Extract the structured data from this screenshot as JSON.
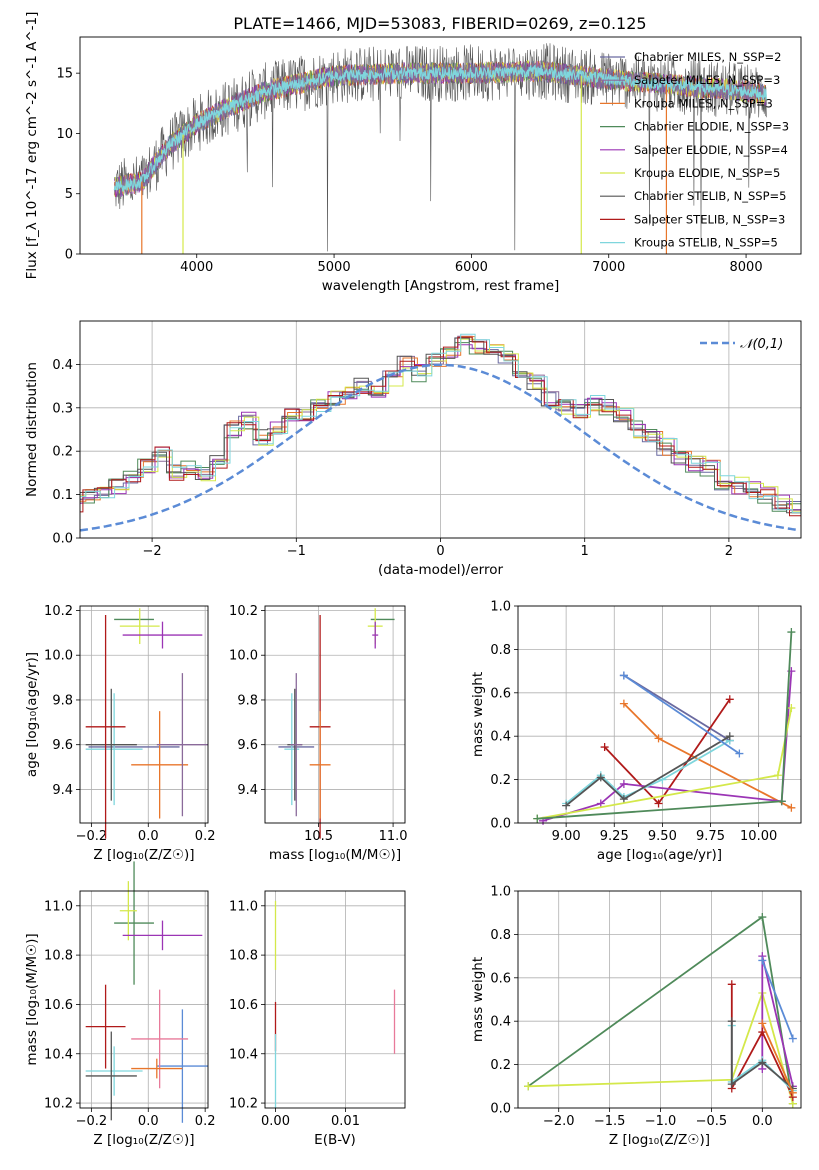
{
  "figure_title": "PLATE=1466, MJD=53083, FIBERID=0269, z=0.125",
  "colors": {
    "Chabrier MILES": "#6a6aa0",
    "Salpeter MILES": "#8a6a9a",
    "Kroupa MILES": "#e8762b",
    "Chabrier ELODIE": "#4f8a5a",
    "Salpeter ELODIE": "#9b35b5",
    "Kroupa ELODIE": "#d4e84a",
    "Chabrier STELIB": "#555555",
    "Salpeter STELIB": "#b01a1a",
    "Kroupa STELIB": "#7fd6dd",
    "gaussian": "#5b8bd6",
    "blue_model": "#5b8bd6",
    "pink_model": "#e87a9a"
  },
  "chart_data": [
    {
      "type": "line",
      "id": "spectrum",
      "title": "PLATE=1466, MJD=53083, FIBERID=0269, z=0.125",
      "xlabel": "wavelength [Angstrom, rest frame]",
      "ylabel": "Flux [f_λ 10^-17 erg cm^-2 s^-1 A^-1]",
      "xlim": [
        3150,
        8400
      ],
      "ylim": [
        0,
        18
      ],
      "xticks": [
        4000,
        5000,
        6000,
        7000,
        8000
      ],
      "yticks": [
        0,
        5,
        10,
        15
      ],
      "grid": false,
      "legend_loc": "right",
      "legend": [
        "Chabrier MILES, N_SSP=2",
        "Salpeter MILES, N_SSP=3",
        "Kroupa MILES, N_SSP=3",
        "Chabrier ELODIE, N_SSP=3",
        "Salpeter ELODIE, N_SSP=4",
        "Kroupa ELODIE, N_SSP=5",
        "Chabrier STELIB, N_SSP=5",
        "Salpeter STELIB, N_SSP=3",
        "Kroupa STELIB, N_SSP=5"
      ],
      "continuum": {
        "x": [
          3400,
          3600,
          3800,
          4000,
          4200,
          4500,
          5000,
          5500,
          6000,
          6500,
          7000,
          7500,
          8000,
          8150
        ],
        "y": [
          5.5,
          6.0,
          9.0,
          10.8,
          12.0,
          13.5,
          14.8,
          15.0,
          15.0,
          15.2,
          14.5,
          14.0,
          13.5,
          13.2
        ]
      }
    },
    {
      "type": "step",
      "id": "residuals",
      "xlabel": "(data-model)/error",
      "ylabel": "Normed distribution",
      "xlim": [
        -2.5,
        2.5
      ],
      "ylim": [
        0,
        0.5
      ],
      "xticks": [
        -2,
        -1,
        0,
        1,
        2
      ],
      "yticks": [
        0.0,
        0.1,
        0.2,
        0.3,
        0.4
      ],
      "grid": true,
      "legend": [
        "𝒩(0,1)"
      ],
      "legend_loc": "upper right",
      "bin_width": 0.1,
      "hist_values": [
        0.02,
        0.025,
        0.03,
        0.04,
        0.045,
        0.05,
        0.06,
        0.08,
        0.09,
        0.08,
        0.1,
        0.11,
        0.12,
        0.14,
        0.17,
        0.19,
        0.15,
        0.16,
        0.15,
        0.17,
        0.25,
        0.27,
        0.23,
        0.25,
        0.28,
        0.29,
        0.3,
        0.32,
        0.34,
        0.35,
        0.33,
        0.37,
        0.4,
        0.38,
        0.41,
        0.43,
        0.45,
        0.44,
        0.43,
        0.42,
        0.38,
        0.36,
        0.32,
        0.3,
        0.29,
        0.31,
        0.3,
        0.28,
        0.25,
        0.24,
        0.21,
        0.18,
        0.17,
        0.16,
        0.13,
        0.12,
        0.11,
        0.1,
        0.08,
        0.07,
        0.06,
        0.05,
        0.04,
        0.035,
        0.03,
        0.03,
        0.02,
        0.03,
        0.02,
        0.02
      ]
    },
    {
      "type": "errorbar",
      "id": "age_vs_Z",
      "xlabel": "Z [log₁₀(Z/Z☉)]",
      "ylabel": "age  [log₁₀(age/yr)]",
      "xlim": [
        -0.24,
        0.21
      ],
      "ylim": [
        9.25,
        10.22
      ],
      "xticks": [
        -0.2,
        0.0,
        0.2
      ],
      "yticks": [
        9.4,
        9.6,
        9.8,
        10.0,
        10.2
      ],
      "grid": true,
      "points": [
        {
          "model": "Chabrier MILES",
          "x": -0.05,
          "y": 9.59,
          "xerr": 0.16,
          "yerr": 0.0
        },
        {
          "model": "Kroupa STELIB",
          "x": -0.12,
          "y": 9.58,
          "xerr": 0.1,
          "yerr": 0.25
        },
        {
          "model": "Chabrier STELIB",
          "x": -0.13,
          "y": 9.6,
          "xerr": 0.09,
          "yerr": 0.25
        },
        {
          "model": "Salpeter STELIB",
          "x": -0.15,
          "y": 9.68,
          "xerr": 0.07,
          "yerr": 0.5
        },
        {
          "model": "Kroupa MILES",
          "x": 0.04,
          "y": 9.51,
          "xerr": 0.1,
          "yerr": 0.24
        },
        {
          "model": "Salpeter MILES",
          "x": 0.12,
          "y": 9.6,
          "xerr": 0.09,
          "yerr": 0.32
        },
        {
          "model": "Chabrier ELODIE",
          "x": -0.05,
          "y": 10.16,
          "xerr": 0.07,
          "yerr": 0.0
        },
        {
          "model": "Kroupa ELODIE",
          "x": -0.03,
          "y": 10.13,
          "xerr": 0.07,
          "yerr": 0.08
        },
        {
          "model": "Salpeter ELODIE",
          "x": 0.05,
          "y": 10.09,
          "xerr": 0.14,
          "yerr": 0.06
        }
      ]
    },
    {
      "type": "errorbar",
      "id": "age_vs_mass",
      "xlabel": "mass [log₁₀(M/M☉)]",
      "ylabel": "",
      "xlim": [
        10.14,
        11.08
      ],
      "ylim": [
        9.25,
        10.22
      ],
      "xticks": [
        10.5,
        11.0
      ],
      "yticks": [
        9.4,
        9.6,
        9.8,
        10.0,
        10.2
      ],
      "grid": true,
      "points": [
        {
          "model": "Chabrier MILES",
          "x": 10.35,
          "y": 9.59,
          "xerr": 0.12,
          "yerr": 0.0
        },
        {
          "model": "Kroupa STELIB",
          "x": 10.32,
          "y": 9.58,
          "xerr": 0.05,
          "yerr": 0.25
        },
        {
          "model": "Chabrier STELIB",
          "x": 10.34,
          "y": 9.6,
          "xerr": 0.05,
          "yerr": 0.25
        },
        {
          "model": "Salpeter STELIB",
          "x": 10.51,
          "y": 9.68,
          "xerr": 0.07,
          "yerr": 0.5
        },
        {
          "model": "Kroupa MILES",
          "x": 10.51,
          "y": 9.51,
          "xerr": 0.07,
          "yerr": 0.24
        },
        {
          "model": "Salpeter MILES",
          "x": 10.35,
          "y": 9.6,
          "xerr": 0.04,
          "yerr": 0.32
        },
        {
          "model": "Chabrier ELODIE",
          "x": 10.93,
          "y": 10.16,
          "xerr": 0.08,
          "yerr": 0.0
        },
        {
          "model": "Kroupa ELODIE",
          "x": 10.88,
          "y": 10.13,
          "xerr": 0.05,
          "yerr": 0.08
        },
        {
          "model": "Salpeter ELODIE",
          "x": 10.88,
          "y": 10.09,
          "xerr": 0.02,
          "yerr": 0.06
        }
      ]
    },
    {
      "type": "line",
      "id": "massweight_vs_age",
      "xlabel": "age  [log₁₀(age/yr)]",
      "ylabel": "mass weight",
      "xlim": [
        8.75,
        10.22
      ],
      "ylim": [
        0,
        1.0
      ],
      "xticks": [
        9.0,
        9.25,
        9.5,
        9.75,
        10.0
      ],
      "yticks": [
        0.0,
        0.2,
        0.4,
        0.6,
        0.8,
        1.0
      ],
      "grid": true,
      "series": [
        {
          "model": "Chabrier MILES",
          "x": [
            9.3,
            9.85
          ],
          "y": [
            0.68,
            0.38
          ]
        },
        {
          "model": "Kroupa MILES",
          "x": [
            9.3,
            9.48,
            10.17
          ],
          "y": [
            0.55,
            0.39,
            0.07
          ]
        },
        {
          "model": "Salpeter STELIB",
          "x": [
            9.2,
            9.48,
            9.85
          ],
          "y": [
            0.35,
            0.09,
            0.57
          ]
        },
        {
          "model": "Salpeter ELODIE",
          "x": [
            8.88,
            9.18,
            9.3,
            10.12,
            10.17
          ],
          "y": [
            0.01,
            0.09,
            0.18,
            0.1,
            0.7
          ]
        },
        {
          "model": "Kroupa STELIB",
          "x": [
            9.0,
            9.18,
            9.3,
            9.5,
            9.85
          ],
          "y": [
            0.09,
            0.22,
            0.12,
            0.2,
            0.38
          ]
        },
        {
          "model": "Chabrier STELIB",
          "x": [
            9.0,
            9.18,
            9.3,
            9.85
          ],
          "y": [
            0.08,
            0.21,
            0.11,
            0.4
          ]
        },
        {
          "model": "Kroupa ELODIE",
          "x": [
            8.85,
            10.1,
            10.17
          ],
          "y": [
            0.02,
            0.22,
            0.53
          ]
        },
        {
          "model": "Chabrier ELODIE",
          "x": [
            8.85,
            10.12,
            10.17
          ],
          "y": [
            0.02,
            0.1,
            0.88
          ]
        },
        {
          "model": "blue_model",
          "x": [
            9.3,
            9.9
          ],
          "y": [
            0.68,
            0.32
          ]
        }
      ]
    },
    {
      "type": "errorbar",
      "id": "mass_vs_Z",
      "xlabel": "Z [log₁₀(Z/Z☉)]",
      "ylabel": "mass [log₁₀(M/M☉)]",
      "xlim": [
        -0.24,
        0.21
      ],
      "ylim": [
        10.18,
        11.06
      ],
      "xticks": [
        -0.2,
        0.0,
        0.2
      ],
      "yticks": [
        10.2,
        10.4,
        10.6,
        10.8,
        11.0
      ],
      "grid": true,
      "points": [
        {
          "model": "blue_model",
          "x": 0.12,
          "y": 10.35,
          "xerr": 0.09,
          "yerr": 0.23
        },
        {
          "model": "Kroupa STELIB",
          "x": -0.12,
          "y": 10.33,
          "xerr": 0.1,
          "yerr": 0.1
        },
        {
          "model": "Chabrier STELIB",
          "x": -0.13,
          "y": 10.31,
          "xerr": 0.09,
          "yerr": 0.18
        },
        {
          "model": "Salpeter STELIB",
          "x": -0.15,
          "y": 10.51,
          "xerr": 0.07,
          "yerr": 0.17
        },
        {
          "model": "pink_model",
          "x": 0.04,
          "y": 10.46,
          "xerr": 0.1,
          "yerr": 0.2
        },
        {
          "model": "Kroupa MILES",
          "x": 0.03,
          "y": 10.34,
          "xerr": 0.09,
          "yerr": 0.04
        },
        {
          "model": "Chabrier ELODIE",
          "x": -0.05,
          "y": 10.93,
          "xerr": 0.07,
          "yerr": 0.25
        },
        {
          "model": "Kroupa ELODIE",
          "x": -0.07,
          "y": 10.98,
          "xerr": 0.03,
          "yerr": 0.12
        },
        {
          "model": "Salpeter ELODIE",
          "x": 0.05,
          "y": 10.88,
          "xerr": 0.14,
          "yerr": 0.06
        }
      ]
    },
    {
      "type": "errorbar",
      "id": "mass_vs_EBV",
      "xlabel": "E(B-V)",
      "ylabel": "",
      "xlim": [
        -0.0015,
        0.0185
      ],
      "ylim": [
        10.18,
        11.06
      ],
      "xticks": [
        0.0,
        0.01
      ],
      "yticks": [
        10.2,
        10.4,
        10.6,
        10.8,
        11.0
      ],
      "grid": true,
      "points": [
        {
          "model": "Kroupa ELODIE",
          "x": 0.0,
          "y": 10.88,
          "xerr": 0,
          "yerr": 0.14
        },
        {
          "model": "Salpeter STELIB",
          "x": 0.0,
          "y": 10.51,
          "xerr": 0,
          "yerr": 0.1
        },
        {
          "model": "Kroupa STELIB",
          "x": 0.0,
          "y": 10.33,
          "xerr": 0,
          "yerr": 0.15
        },
        {
          "model": "pink_model",
          "x": 0.017,
          "y": 10.53,
          "xerr": 0,
          "yerr": 0.13
        }
      ]
    },
    {
      "type": "line",
      "id": "massweight_vs_Z",
      "xlabel": "Z [log₁₀(Z/Z☉)]",
      "ylabel": "mass weight",
      "xlim": [
        -2.4,
        0.38
      ],
      "ylim": [
        0,
        1.0
      ],
      "xticks": [
        -2.0,
        -1.5,
        -1.0,
        -0.5,
        0.0
      ],
      "yticks": [
        0.0,
        0.2,
        0.4,
        0.6,
        0.8,
        1.0
      ],
      "grid": true,
      "series": [
        {
          "model": "Chabrier ELODIE",
          "x": [
            -2.3,
            0.0,
            0.3
          ],
          "y": [
            0.1,
            0.88,
            0.02
          ]
        },
        {
          "model": "Kroupa ELODIE",
          "x": [
            -2.3,
            -0.3,
            0.0,
            0.3
          ],
          "y": [
            0.1,
            0.13,
            0.53,
            0.02
          ]
        },
        {
          "model": "Salpeter ELODIE",
          "x": [
            0.0,
            0.0,
            0.3
          ],
          "y": [
            0.18,
            0.7,
            0.1
          ]
        },
        {
          "model": "Salpeter STELIB",
          "x": [
            -0.3,
            -0.3,
            0.0,
            0.3
          ],
          "y": [
            0.57,
            0.09,
            0.35,
            0.05
          ]
        },
        {
          "model": "Kroupa STELIB",
          "x": [
            -0.3,
            -0.3,
            0.0,
            0.3
          ],
          "y": [
            0.38,
            0.12,
            0.22,
            0.08
          ]
        },
        {
          "model": "Chabrier STELIB",
          "x": [
            -0.3,
            -0.3,
            0.0,
            0.3
          ],
          "y": [
            0.4,
            0.11,
            0.21,
            0.09
          ]
        },
        {
          "model": "blue_model",
          "x": [
            0.0,
            0.3
          ],
          "y": [
            0.68,
            0.32
          ]
        },
        {
          "model": "Kroupa MILES",
          "x": [
            0.0,
            0.3
          ],
          "y": [
            0.39,
            0.07
          ]
        }
      ]
    }
  ]
}
